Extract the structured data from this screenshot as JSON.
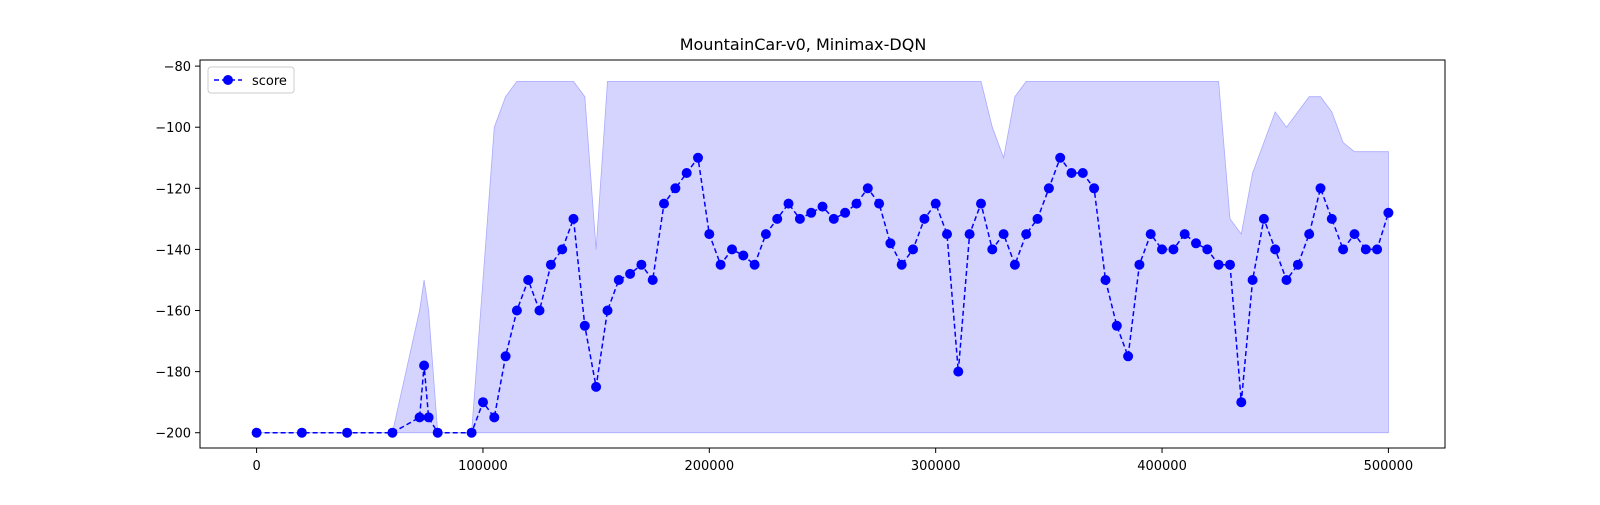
{
  "chart_data": {
    "type": "line",
    "title": "MountainCar-v0, Minimax-DQN",
    "xlabel": "",
    "ylabel": "",
    "xlim": [
      -25000,
      525000
    ],
    "ylim": [
      -205,
      -78
    ],
    "x_ticks": [
      0,
      100000,
      200000,
      300000,
      400000,
      500000
    ],
    "x_tick_labels": [
      "0",
      "100000",
      "200000",
      "300000",
      "400000",
      "500000"
    ],
    "y_ticks": [
      -200,
      -180,
      -160,
      -140,
      -120,
      -100,
      -80
    ],
    "y_tick_labels": [
      "−200",
      "−180",
      "−160",
      "−140",
      "−120",
      "−100",
      "−80"
    ],
    "grid": false,
    "legend": {
      "position": "top-left",
      "entries": [
        "score"
      ]
    },
    "colors": {
      "line": "#0000ff",
      "band": "#ccccff",
      "band_edge": "#aaaaff"
    },
    "series": [
      {
        "name": "score",
        "style": "dashed-line-circle-markers",
        "x": [
          0,
          20000,
          40000,
          60000,
          72000,
          74000,
          76000,
          80000,
          95000,
          100000,
          105000,
          110000,
          115000,
          120000,
          125000,
          130000,
          135000,
          140000,
          145000,
          150000,
          155000,
          160000,
          165000,
          170000,
          175000,
          180000,
          185000,
          190000,
          195000,
          200000,
          205000,
          210000,
          215000,
          220000,
          225000,
          230000,
          235000,
          240000,
          245000,
          250000,
          255000,
          260000,
          265000,
          270000,
          275000,
          280000,
          285000,
          290000,
          295000,
          300000,
          305000,
          310000,
          315000,
          320000,
          325000,
          330000,
          335000,
          340000,
          345000,
          350000,
          355000,
          360000,
          365000,
          370000,
          375000,
          380000,
          385000,
          390000,
          395000,
          400000,
          405000,
          410000,
          415000,
          420000,
          425000,
          430000,
          435000,
          440000,
          445000,
          450000,
          455000,
          460000,
          465000,
          470000,
          475000,
          480000,
          485000,
          490000,
          495000,
          500000
        ],
        "y": [
          -200,
          -200,
          -200,
          -200,
          -195,
          -178,
          -195,
          -200,
          -200,
          -190,
          -195,
          -175,
          -160,
          -150,
          -160,
          -145,
          -140,
          -130,
          -165,
          -185,
          -160,
          -150,
          -148,
          -145,
          -150,
          -125,
          -120,
          -115,
          -110,
          -135,
          -145,
          -140,
          -142,
          -145,
          -135,
          -130,
          -125,
          -130,
          -128,
          -126,
          -130,
          -128,
          -125,
          -120,
          -125,
          -138,
          -145,
          -140,
          -130,
          -125,
          -135,
          -180,
          -135,
          -125,
          -140,
          -135,
          -145,
          -135,
          -130,
          -120,
          -110,
          -115,
          -115,
          -120,
          -150,
          -165,
          -175,
          -145,
          -135,
          -140,
          -140,
          -135,
          -138,
          -140,
          -145,
          -145,
          -190,
          -150,
          -130,
          -140,
          -150,
          -145,
          -135,
          -120,
          -130,
          -140,
          -135,
          -140,
          -140,
          -128
        ],
        "band_upper": [
          -200,
          -200,
          -200,
          -200,
          -160,
          -150,
          -160,
          -200,
          -200,
          -150,
          -100,
          -90,
          -85,
          -85,
          -85,
          -85,
          -85,
          -85,
          -90,
          -140,
          -85,
          -85,
          -85,
          -85,
          -85,
          -85,
          -85,
          -85,
          -85,
          -85,
          -85,
          -85,
          -85,
          -85,
          -85,
          -85,
          -85,
          -85,
          -85,
          -85,
          -85,
          -85,
          -85,
          -85,
          -85,
          -85,
          -85,
          -85,
          -85,
          -85,
          -85,
          -85,
          -85,
          -85,
          -100,
          -110,
          -90,
          -85,
          -85,
          -85,
          -85,
          -85,
          -85,
          -85,
          -85,
          -85,
          -85,
          -85,
          -85,
          -85,
          -85,
          -85,
          -85,
          -85,
          -85,
          -130,
          -135,
          -115,
          -105,
          -95,
          -100,
          -95,
          -90,
          -90,
          -95,
          -105,
          -108,
          -108,
          -108,
          -108
        ],
        "band_lower": [
          -200,
          -200,
          -200,
          -200,
          -200,
          -200,
          -200,
          -200,
          -200,
          -200,
          -200,
          -200,
          -200,
          -200,
          -200,
          -200,
          -200,
          -200,
          -200,
          -200,
          -200,
          -200,
          -200,
          -200,
          -200,
          -200,
          -200,
          -200,
          -200,
          -200,
          -200,
          -200,
          -200,
          -200,
          -200,
          -200,
          -200,
          -200,
          -200,
          -200,
          -200,
          -200,
          -200,
          -200,
          -200,
          -200,
          -200,
          -200,
          -200,
          -200,
          -200,
          -200,
          -200,
          -200,
          -200,
          -200,
          -200,
          -200,
          -200,
          -200,
          -200,
          -200,
          -200,
          -200,
          -200,
          -200,
          -200,
          -200,
          -200,
          -200,
          -200,
          -200,
          -200,
          -200,
          -200,
          -200,
          -200,
          -200,
          -200,
          -200,
          -200,
          -200,
          -200,
          -200,
          -200,
          -200,
          -200,
          -200,
          -200,
          -200
        ]
      }
    ]
  }
}
